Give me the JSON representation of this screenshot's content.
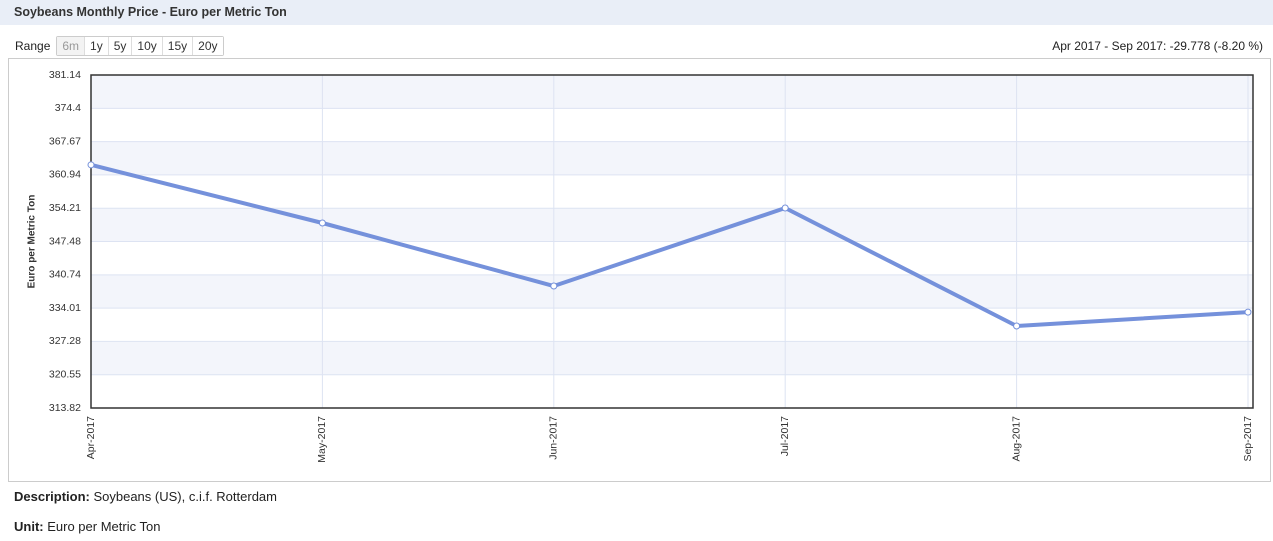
{
  "header": {
    "title": "Soybeans Monthly Price - Euro per Metric Ton"
  },
  "range": {
    "label": "Range",
    "buttons": [
      "6m",
      "1y",
      "5y",
      "10y",
      "15y",
      "20y"
    ]
  },
  "summary": "Apr 2017 - Sep 2017: -29.778 (-8.20 %)",
  "chart_data": {
    "type": "line",
    "y_label": "Euro per Metric Ton",
    "categories": [
      "Apr-2017",
      "May-2017",
      "Jun-2017",
      "Jul-2017",
      "Aug-2017",
      "Sep-2017"
    ],
    "series": [
      {
        "name": "Soybeans",
        "color": "#7591db",
        "values": [
          362.98,
          351.22,
          338.48,
          354.25,
          330.4,
          333.2
        ]
      }
    ],
    "ylim": [
      313.82,
      381.14
    ],
    "yticks": [
      313.82,
      320.55,
      327.28,
      334.01,
      340.74,
      347.48,
      354.21,
      360.94,
      367.67,
      374.4,
      381.14
    ],
    "grid": true
  },
  "description": {
    "label": "Description:",
    "text": "Soybeans (US), c.i.f. Rotterdam"
  },
  "unit": {
    "label": "Unit:",
    "text": "Euro per Metric Ton"
  }
}
